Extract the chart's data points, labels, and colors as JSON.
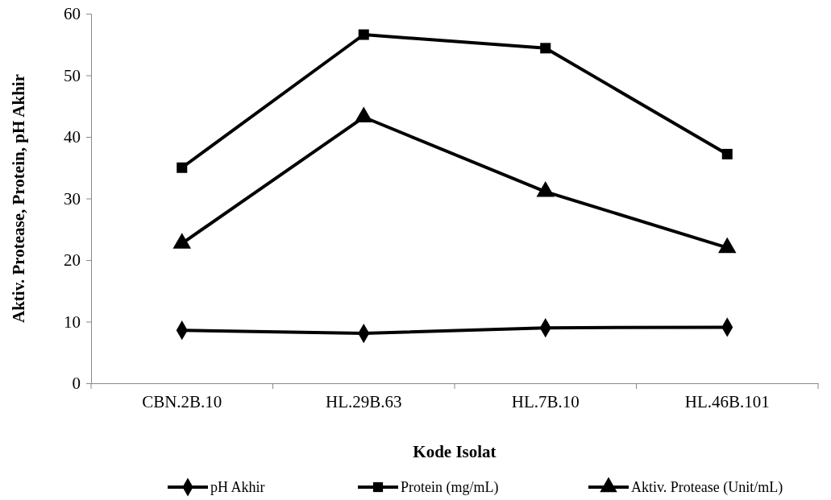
{
  "chart_data": {
    "type": "line",
    "xlabel": "Kode Isolat",
    "ylabel": "Aktiv. Protease, Protein, pH Akhir",
    "categories": [
      "CBN.2B.10",
      "HL.29B.63",
      "HL.7B.10",
      "HL.46B.101"
    ],
    "series": [
      {
        "name": "pH Akhir",
        "color": "#000000",
        "marker": "diamond",
        "values": [
          8.6,
          8.1,
          9.0,
          9.1
        ]
      },
      {
        "name": "Protein (mg/mL)",
        "color": "#000000",
        "marker": "square",
        "values": [
          35.0,
          56.6,
          54.4,
          37.2
        ]
      },
      {
        "name": "Aktiv. Protease (Unit/mL)",
        "color": "#000000",
        "marker": "triangle",
        "values": [
          22.7,
          43.2,
          31.1,
          22.0
        ]
      }
    ],
    "ylim": [
      0,
      60
    ],
    "yticks": [
      0,
      10,
      20,
      30,
      40,
      50,
      60
    ],
    "grid": false,
    "legend": "bottom",
    "line_style": "solid"
  }
}
